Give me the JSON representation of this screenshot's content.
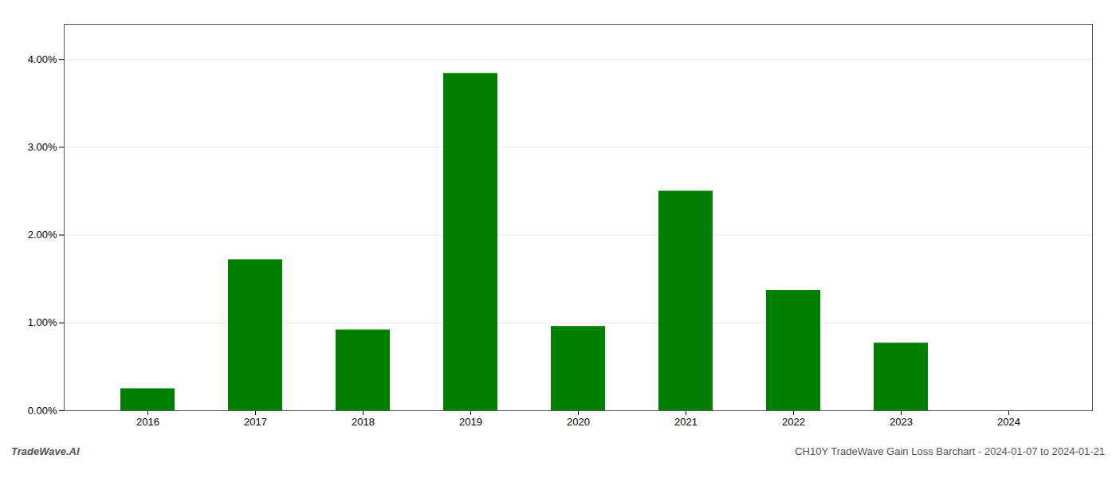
{
  "chart_data": {
    "type": "bar",
    "categories": [
      "2016",
      "2017",
      "2018",
      "2019",
      "2020",
      "2021",
      "2022",
      "2023",
      "2024"
    ],
    "values": [
      0.0025,
      0.0172,
      0.0092,
      0.0384,
      0.0096,
      0.025,
      0.0137,
      0.0077,
      0.0
    ],
    "color": "#008000",
    "ylim": [
      0,
      0.044
    ],
    "yticks": [
      {
        "value": 0.0,
        "label": "0.00%"
      },
      {
        "value": 0.01,
        "label": "1.00%"
      },
      {
        "value": 0.02,
        "label": "2.00%"
      },
      {
        "value": 0.03,
        "label": "3.00%"
      },
      {
        "value": 0.04,
        "label": "4.00%"
      }
    ],
    "grid": true,
    "annotations": [
      "TradeWave.AI",
      "CH10Y TradeWave Gain Loss Barchart - 2024-01-07 to 2024-01-21"
    ]
  }
}
